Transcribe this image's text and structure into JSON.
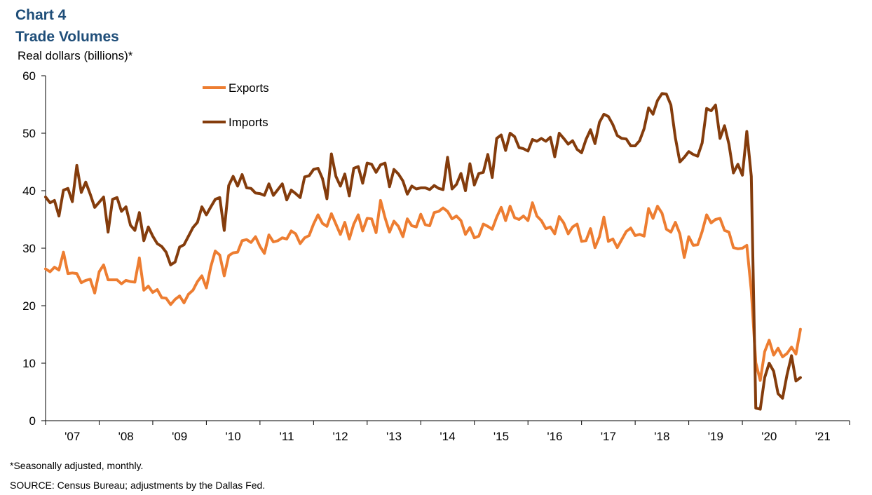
{
  "header": {
    "chart_number": "Chart 4",
    "title": "Trade Volumes",
    "unit_label": "Real dollars (billions)*"
  },
  "notes": {
    "footnote": "*Seasonally adjusted, monthly.",
    "source": "SOURCE: Census Bureau; adjustments by the Dallas Fed."
  },
  "colors": {
    "exports": "#ed7d31",
    "imports": "#843c0c",
    "title": "#1f4e79"
  },
  "chart_data": {
    "type": "line",
    "title": "Trade Volumes",
    "ylabel": "Real dollars (billions)*",
    "xlabel": "",
    "ylim": [
      0,
      60
    ],
    "yticks": [
      0,
      10,
      20,
      30,
      40,
      50,
      60
    ],
    "x_start": "2006-12",
    "x_end": "2021-12",
    "x_tick_labels": [
      "'07",
      "'08",
      "'09",
      "'10",
      "'11",
      "'12",
      "'13",
      "'14",
      "'15",
      "'16",
      "'17",
      "'18",
      "'19",
      "'20",
      "'21"
    ],
    "grid": false,
    "legend": "top-left",
    "series": [
      {
        "name": "Exports",
        "color": "#ed7d31",
        "start": "2006-12",
        "values": [
          26.4,
          25.9,
          26.7,
          26.2,
          29.3,
          25.6,
          25.7,
          25.6,
          24.0,
          24.4,
          24.6,
          22.2,
          25.9,
          27.1,
          24.5,
          24.5,
          24.5,
          23.8,
          24.4,
          24.2,
          24.1,
          28.3,
          22.7,
          23.4,
          22.3,
          22.8,
          21.4,
          21.3,
          20.2,
          21.1,
          21.7,
          20.5,
          22.0,
          22.7,
          24.2,
          25.2,
          23.1,
          26.8,
          29.5,
          28.8,
          25.2,
          28.7,
          29.2,
          29.3,
          31.3,
          31.5,
          31.0,
          32.0,
          30.3,
          29.1,
          32.3,
          31.1,
          31.3,
          31.8,
          31.6,
          33.0,
          32.5,
          30.8,
          31.8,
          32.2,
          34.2,
          35.8,
          34.3,
          33.8,
          36.0,
          34.2,
          32.4,
          34.5,
          31.6,
          34.2,
          35.8,
          33.0,
          35.2,
          35.1,
          32.7,
          38.3,
          35.3,
          32.8,
          34.7,
          33.8,
          32.0,
          35.1,
          33.9,
          33.7,
          35.9,
          34.1,
          33.9,
          36.2,
          36.4,
          37.0,
          36.4,
          35.1,
          35.6,
          34.8,
          32.4,
          33.6,
          31.8,
          32.1,
          34.2,
          33.8,
          33.3,
          35.4,
          37.1,
          34.8,
          37.3,
          35.3,
          35.0,
          35.6,
          34.8,
          37.9,
          35.6,
          34.8,
          33.4,
          33.7,
          32.5,
          35.5,
          34.4,
          32.5,
          33.7,
          34.2,
          31.2,
          31.3,
          33.4,
          30.1,
          32.0,
          35.4,
          31.2,
          31.6,
          30.1,
          31.5,
          32.9,
          33.5,
          32.2,
          32.4,
          32.1,
          36.9,
          35.2,
          37.3,
          36.1,
          33.3,
          32.8,
          34.5,
          32.5,
          28.4,
          32.0,
          30.5,
          30.6,
          32.9,
          35.8,
          34.4,
          35.0,
          35.2,
          33.1,
          32.8,
          30.1,
          29.9,
          30.0,
          30.5,
          22.6,
          10.1,
          7.0,
          12.0,
          14.0,
          11.4,
          12.6,
          11.1,
          11.7,
          12.8,
          11.6,
          15.9
        ]
      },
      {
        "name": "Imports",
        "color": "#843c0c",
        "start": "2006-12",
        "values": [
          38.9,
          37.9,
          38.3,
          35.6,
          40.1,
          40.4,
          38.1,
          44.4,
          39.7,
          41.5,
          39.4,
          37.1,
          38.0,
          38.9,
          32.8,
          38.5,
          38.8,
          36.4,
          37.2,
          34.0,
          33.1,
          36.2,
          31.3,
          33.7,
          32.1,
          30.8,
          30.3,
          29.3,
          27.1,
          27.6,
          30.2,
          30.6,
          32.1,
          33.6,
          34.5,
          37.2,
          35.8,
          37.2,
          38.5,
          38.8,
          33.1,
          40.9,
          42.5,
          40.8,
          42.8,
          40.5,
          40.4,
          39.6,
          39.5,
          39.2,
          41.2,
          39.2,
          40.2,
          41.2,
          38.4,
          40.1,
          39.5,
          38.8,
          42.4,
          42.6,
          43.7,
          43.9,
          42.1,
          38.6,
          46.4,
          42.5,
          40.8,
          42.9,
          39.1,
          43.9,
          44.2,
          41.3,
          44.8,
          44.6,
          43.2,
          44.5,
          44.8,
          40.7,
          43.7,
          42.9,
          41.7,
          39.4,
          40.8,
          40.3,
          40.5,
          40.5,
          40.2,
          40.9,
          40.4,
          40.2,
          45.8,
          40.3,
          41.1,
          43.0,
          40.0,
          44.7,
          41.0,
          43.0,
          43.2,
          46.3,
          42.3,
          49.1,
          49.7,
          47.0,
          50.0,
          49.4,
          47.5,
          47.3,
          46.9,
          48.9,
          48.6,
          49.1,
          48.6,
          49.3,
          45.9,
          50.0,
          49.1,
          48.1,
          48.7,
          47.2,
          46.6,
          48.9,
          50.6,
          48.2,
          51.9,
          53.3,
          52.9,
          51.5,
          49.6,
          49.1,
          49.0,
          47.8,
          47.8,
          48.7,
          50.8,
          54.4,
          53.3,
          55.7,
          56.9,
          56.8,
          54.9,
          49.2,
          45.0,
          45.8,
          46.8,
          46.3,
          46.0,
          48.3,
          54.3,
          53.9,
          54.9,
          49.1,
          51.3,
          48.1,
          43.1,
          44.6,
          42.7,
          50.3,
          42.5,
          2.2,
          2.0,
          7.5,
          10.0,
          8.6,
          4.7,
          3.9,
          8.0,
          11.3,
          6.9,
          7.5
        ]
      }
    ]
  }
}
